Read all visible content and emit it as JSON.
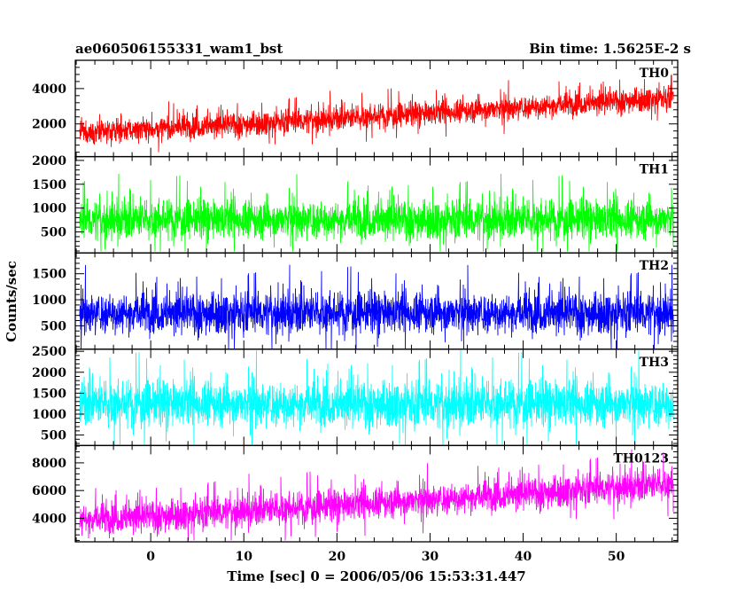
{
  "header": {
    "left": "ae060506155331_wam1_bst",
    "right": "Bin time: 1.5625E-2 s"
  },
  "chart_data": {
    "type": "line",
    "title": "ae060506155331_wam1_bst",
    "subtitle": "Bin time: 1.5625E-2 s",
    "xlabel": "Time [sec] 0 = 2006/05/06 15:53:31.447",
    "ylabel": "Counts/sec",
    "xlim": [
      -8.1,
      56.6
    ],
    "x_ticks": [
      0,
      10,
      20,
      30,
      40,
      50
    ],
    "x_tick_labels": [
      "0",
      "10",
      "20",
      "30",
      "40",
      "50"
    ],
    "data_x_range": [
      -7.6,
      56.1
    ],
    "bin_time": 0.015625,
    "grid": false,
    "panels": [
      {
        "name": "TH0",
        "color": "#ff0000",
        "ylim": [
          150,
          5600
        ],
        "y_ticks": [
          2000,
          4000
        ],
        "y_tick_labels": [
          "2000",
          "4000"
        ],
        "trend": [
          {
            "x": -7.6,
            "y": 1500
          },
          {
            "x": 10,
            "y": 2000
          },
          {
            "x": 30,
            "y": 2600
          },
          {
            "x": 56.1,
            "y": 3500
          }
        ],
        "noise_amplitude": 450,
        "peak_max": 5550,
        "floor_min": 200
      },
      {
        "name": "TH1",
        "color": "#00ff00",
        "ylim": [
          60,
          2080
        ],
        "y_ticks": [
          500,
          1000,
          1500,
          2000
        ],
        "y_tick_labels": [
          "500",
          "1000",
          "1500",
          "2000"
        ],
        "trend": [
          {
            "x": -7.6,
            "y": 760
          },
          {
            "x": 56.1,
            "y": 760
          }
        ],
        "noise_amplitude": 270,
        "peak_max": 1950,
        "floor_min": 90
      },
      {
        "name": "TH2",
        "color": "#0000ff",
        "ylim": [
          50,
          1900
        ],
        "y_ticks": [
          500,
          1000,
          1500
        ],
        "y_tick_labels": [
          "500",
          "1000",
          "1500"
        ],
        "trend": [
          {
            "x": -7.6,
            "y": 750
          },
          {
            "x": 56.1,
            "y": 750
          }
        ],
        "noise_amplitude": 260,
        "peak_max": 1870,
        "floor_min": 60
      },
      {
        "name": "TH3",
        "color": "#00ffff",
        "ylim": [
          250,
          2550
        ],
        "y_ticks": [
          500,
          1000,
          1500,
          2000,
          2500
        ],
        "y_tick_labels": [
          "500",
          "1000",
          "1500",
          "2000",
          "2500"
        ],
        "trend": [
          {
            "x": -7.6,
            "y": 1250
          },
          {
            "x": 56.1,
            "y": 1250
          }
        ],
        "noise_amplitude": 360,
        "peak_max": 2540,
        "floor_min": 270
      },
      {
        "name": "TH0123",
        "color": "#ff00ff",
        "ylim": [
          2300,
          9250
        ],
        "y_ticks": [
          4000,
          6000,
          8000
        ],
        "y_tick_labels": [
          "4000",
          "6000",
          "8000"
        ],
        "trend": [
          {
            "x": -7.6,
            "y": 3900
          },
          {
            "x": 20,
            "y": 4900
          },
          {
            "x": 56.1,
            "y": 6500
          }
        ],
        "noise_amplitude": 750,
        "peak_max": 9100,
        "floor_min": 2400
      }
    ]
  }
}
